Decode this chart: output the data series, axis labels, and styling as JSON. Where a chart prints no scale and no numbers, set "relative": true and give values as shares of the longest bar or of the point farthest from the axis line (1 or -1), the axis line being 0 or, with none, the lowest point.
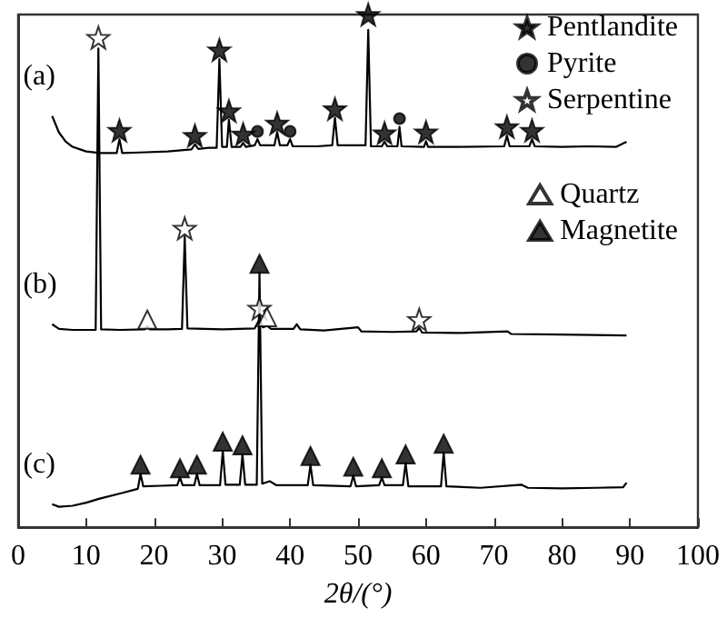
{
  "chart_data": {
    "type": "line",
    "relative": true,
    "xlabel": "2θ/(°)",
    "xlim": [
      0,
      100
    ],
    "xticks": [
      0,
      10,
      20,
      30,
      40,
      50,
      60,
      70,
      80,
      90,
      100
    ],
    "grid": false,
    "legend": "top right",
    "series": [
      {
        "name": "(a)",
        "color": "#000000",
        "x": [
          5,
          6,
          7,
          8,
          10,
          12,
          14.5,
          14.9,
          15.3,
          18,
          22,
          25.5,
          26,
          26.5,
          28,
          29.2,
          29.6,
          30,
          30.7,
          31,
          31.4,
          32.7,
          33.1,
          33.5,
          34.8,
          35.2,
          35.6,
          37.7,
          38.1,
          38.5,
          39.6,
          40,
          40.4,
          44,
          46.2,
          46.6,
          47,
          51.1,
          51.5,
          51.9,
          53.5,
          53.9,
          54.3,
          55.8,
          56.1,
          56.4,
          59.7,
          60,
          60.3,
          65,
          71.5,
          71.9,
          72.3,
          75.2,
          75.6,
          76,
          80,
          84,
          88,
          89.5
        ],
        "values": [
          0.802,
          0.77,
          0.752,
          0.742,
          0.733,
          0.73,
          0.73,
          0.757,
          0.73,
          0.731,
          0.733,
          0.737,
          0.747,
          0.738,
          0.74,
          0.74,
          0.913,
          0.742,
          0.742,
          0.795,
          0.742,
          0.742,
          0.75,
          0.742,
          0.745,
          0.757,
          0.745,
          0.745,
          0.771,
          0.745,
          0.745,
          0.757,
          0.743,
          0.743,
          0.745,
          0.799,
          0.745,
          0.745,
          0.97,
          0.743,
          0.743,
          0.752,
          0.743,
          0.743,
          0.781,
          0.743,
          0.742,
          0.753,
          0.742,
          0.742,
          0.743,
          0.764,
          0.743,
          0.743,
          0.757,
          0.743,
          0.742,
          0.743,
          0.742,
          0.752
        ]
      },
      {
        "name": "(b)",
        "color": "#000000",
        "x": [
          5,
          6,
          8,
          11.4,
          11.8,
          12.2,
          15,
          18.6,
          19,
          19.4,
          22,
          24.1,
          24.5,
          24.9,
          30,
          34.8,
          35.5,
          36,
          36.6,
          37.2,
          40.5,
          41,
          41.5,
          45,
          50,
          50.5,
          55,
          58.6,
          59,
          59.4,
          65,
          72,
          72.5,
          80,
          89.5
        ],
        "values": [
          0.396,
          0.387,
          0.385,
          0.385,
          0.934,
          0.386,
          0.385,
          0.386,
          0.392,
          0.386,
          0.386,
          0.387,
          0.566,
          0.388,
          0.386,
          0.388,
          0.406,
          0.39,
          0.393,
          0.387,
          0.387,
          0.396,
          0.386,
          0.384,
          0.39,
          0.382,
          0.381,
          0.382,
          0.389,
          0.38,
          0.379,
          0.382,
          0.377,
          0.376,
          0.374
        ]
      },
      {
        "name": "(c)",
        "color": "#000000",
        "x": [
          5,
          6,
          8,
          10,
          12,
          15,
          17.6,
          18,
          18.4,
          21,
          23.4,
          23.8,
          24.2,
          25.9,
          26.3,
          26.7,
          29.7,
          30.1,
          30.5,
          32.6,
          33,
          33.4,
          35.1,
          35.5,
          35.9,
          37,
          38,
          41,
          42.6,
          43,
          43.4,
          48.9,
          49.3,
          49.7,
          53.1,
          53.5,
          53.9,
          56.6,
          57,
          57.4,
          62.2,
          62.6,
          63,
          68,
          74,
          75,
          80,
          85,
          89,
          89.5
        ],
        "values": [
          0.045,
          0.04,
          0.042,
          0.048,
          0.056,
          0.066,
          0.075,
          0.104,
          0.08,
          0.081,
          0.082,
          0.097,
          0.082,
          0.082,
          0.104,
          0.082,
          0.082,
          0.149,
          0.083,
          0.083,
          0.142,
          0.083,
          0.083,
          0.497,
          0.085,
          0.09,
          0.082,
          0.082,
          0.082,
          0.122,
          0.082,
          0.08,
          0.101,
          0.08,
          0.082,
          0.097,
          0.082,
          0.082,
          0.125,
          0.08,
          0.08,
          0.146,
          0.08,
          0.077,
          0.083,
          0.077,
          0.076,
          0.077,
          0.078,
          0.087
        ]
      },
      {
        "name": "Pentlandite",
        "type": "scatter",
        "marker": "star",
        "color": "#000000",
        "x": [
          14.9,
          26,
          29.6,
          31,
          33.1,
          38.1,
          46.6,
          51.5,
          53.9,
          60,
          71.9,
          75.6
        ],
        "values": [
          0.774,
          0.764,
          0.931,
          0.812,
          0.767,
          0.788,
          0.816,
          1.0,
          0.769,
          0.771,
          0.781,
          0.774
        ]
      },
      {
        "name": "Pyrite",
        "type": "scatter",
        "marker": "circle",
        "color": "#000000",
        "x": [
          35.2,
          40,
          56.1
        ],
        "values": [
          0.772,
          0.772,
          0.797
        ]
      },
      {
        "name": "Serpentine",
        "type": "scatter",
        "marker": "star",
        "color": "#ffffff",
        "x": [
          11.8,
          24.5,
          35.5,
          59
        ],
        "values": [
          0.955,
          0.583,
          0.427,
          0.405
        ]
      },
      {
        "name": "Quartz",
        "type": "scatter",
        "marker": "triangle",
        "color": "#ffffff",
        "x": [
          19,
          36.6
        ],
        "values": [
          0.405,
          0.41
        ]
      },
      {
        "name": "Magnetite",
        "type": "scatter",
        "marker": "triangle",
        "color": "#000000",
        "x": [
          18,
          23.8,
          26.3,
          30.1,
          33,
          35.5,
          43,
          49.3,
          53.5,
          57,
          62.6
        ],
        "values": [
          0.122,
          0.115,
          0.122,
          0.167,
          0.16,
          0.514,
          0.139,
          0.118,
          0.115,
          0.142,
          0.163
        ]
      }
    ]
  }
}
